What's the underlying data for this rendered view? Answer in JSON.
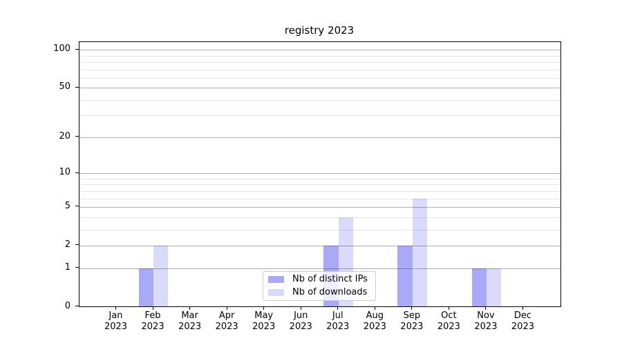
{
  "chart_data": {
    "type": "bar",
    "title": "registry 2023",
    "categories": [
      {
        "month": "Jan",
        "year": "2023"
      },
      {
        "month": "Feb",
        "year": "2023"
      },
      {
        "month": "Mar",
        "year": "2023"
      },
      {
        "month": "Apr",
        "year": "2023"
      },
      {
        "month": "May",
        "year": "2023"
      },
      {
        "month": "Jun",
        "year": "2023"
      },
      {
        "month": "Jul",
        "year": "2023"
      },
      {
        "month": "Aug",
        "year": "2023"
      },
      {
        "month": "Sep",
        "year": "2023"
      },
      {
        "month": "Oct",
        "year": "2023"
      },
      {
        "month": "Nov",
        "year": "2023"
      },
      {
        "month": "Dec",
        "year": "2023"
      }
    ],
    "series": [
      {
        "name": "Nb of distinct IPs",
        "color_hex": "#a9a9f7",
        "fill": "rgba(10,10,232,0.35)",
        "values": [
          0,
          1,
          0,
          0,
          0,
          0,
          2,
          0,
          2,
          0,
          1,
          0
        ]
      },
      {
        "name": "Nb of downloads",
        "color_hex": "#dadaf9",
        "fill": "rgba(10,10,222,0.15)",
        "values": [
          0,
          2,
          0,
          0,
          0,
          0,
          4,
          0,
          6,
          0,
          1,
          0
        ]
      }
    ],
    "yscale": "log1p",
    "ylim": [
      0,
      115
    ],
    "yticks_major": [
      0,
      1,
      2,
      5,
      10,
      20,
      50,
      100
    ],
    "yticks_minor": [
      3,
      4,
      6,
      7,
      8,
      9,
      30,
      40,
      60,
      70,
      80,
      90
    ],
    "grid": "horizontal-only",
    "legend_location": "lower center",
    "bar_width_fraction": 0.4,
    "axis_colors": {
      "spine": "#000000",
      "major_grid": "#b0b0b0",
      "minor_grid": "#e6e6e6",
      "text": "#000000"
    }
  }
}
